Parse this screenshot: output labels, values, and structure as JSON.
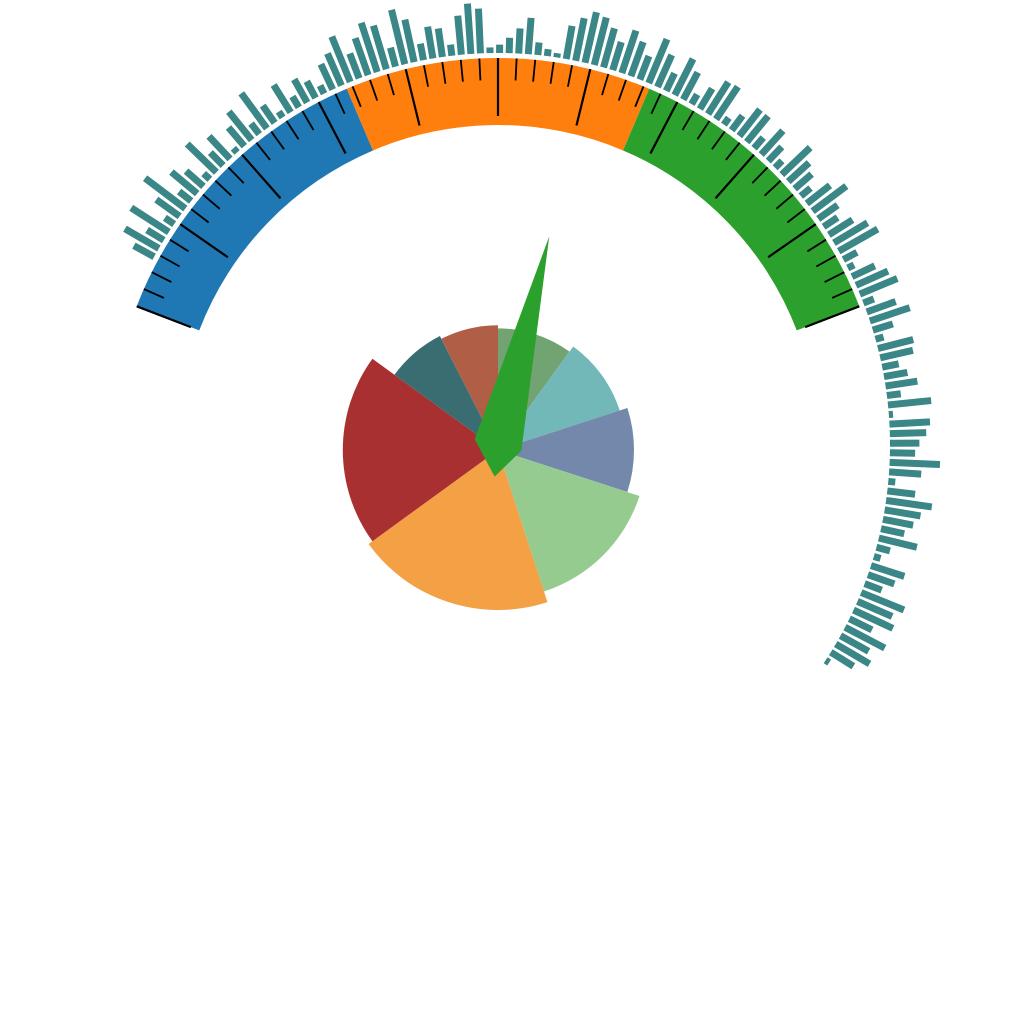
{
  "chart_data": [
    {
      "type": "gauge",
      "value": 60,
      "range": [
        0,
        100
      ],
      "bands": [
        {
          "from": 0,
          "to": 33.33,
          "color": "#1f77b4"
        },
        {
          "from": 33.33,
          "to": 66.67,
          "color": "#ff7f0e"
        },
        {
          "from": 66.67,
          "to": 100,
          "color": "#2ca02c"
        }
      ],
      "needle_color": "#2ca02c",
      "major_tick_every": 10,
      "minor_ticks_per_major": 4
    },
    {
      "type": "radial_bar",
      "bar_color": "#3b8686",
      "values": [
        0.33,
        0.56,
        0.28,
        0.64,
        0.16,
        0.41,
        0.72,
        0.22,
        0.48,
        0.33,
        0.12,
        0.58,
        0.26,
        0.44,
        0.08,
        0.35,
        0.52,
        0.19,
        0.62,
        0.3,
        0.1,
        0.46,
        0.18,
        0.38,
        0.27,
        0.13,
        0.4,
        0.5,
        0.7,
        0.38,
        0.56,
        0.74,
        0.65,
        0.28,
        0.8,
        0.62,
        0.24,
        0.46,
        0.41,
        0.16,
        0.56,
        0.72,
        0.64,
        0.08,
        0.12,
        0.22,
        0.36,
        0.52,
        0.18,
        0.1,
        0.06,
        0.48,
        0.62,
        0.74,
        0.7,
        0.58,
        0.42,
        0.64,
        0.52,
        0.36,
        0.68,
        0.5,
        0.28,
        0.58,
        0.44,
        0.16,
        0.34,
        0.54,
        0.56,
        0.12,
        0.26,
        0.48,
        0.48,
        0.2,
        0.46,
        0.28,
        0.14,
        0.56,
        0.4,
        0.32,
        0.18,
        0.42,
        0.6,
        0.34,
        0.24,
        0.4,
        0.56,
        0.64,
        0.22,
        0.1,
        0.36,
        0.5,
        0.58,
        0.16,
        0.44,
        0.6,
        0.3,
        0.12,
        0.52,
        0.48,
        0.24,
        0.34,
        0.46,
        0.2,
        0.62,
        0.06,
        0.58,
        0.52,
        0.42,
        0.36,
        0.72,
        0.46,
        0.1,
        0.4,
        0.66,
        0.52,
        0.44,
        0.34,
        0.56,
        0.2,
        0.1,
        0.5,
        0.4,
        0.26,
        0.66,
        0.54,
        0.62,
        0.36,
        0.64,
        0.46,
        0.56,
        0.38,
        0.06
      ]
    },
    {
      "type": "polar_area",
      "slices": [
        {
          "value": 1,
          "radius": 0.76,
          "color": "#72a372"
        },
        {
          "value": 1,
          "radius": 0.8,
          "color": "#72b8b8"
        },
        {
          "value": 1,
          "radius": 0.85,
          "color": "#7388ab"
        },
        {
          "value": 1.5,
          "radius": 0.93,
          "color": "#95cb8f"
        },
        {
          "value": 2,
          "radius": 1.0,
          "color": "#f4a044"
        },
        {
          "value": 2,
          "radius": 0.97,
          "color": "#a93030"
        },
        {
          "value": 0.75,
          "radius": 0.8,
          "color": "#3a6d72"
        },
        {
          "value": 0.75,
          "radius": 0.78,
          "color": "#b05e46"
        }
      ]
    }
  ]
}
